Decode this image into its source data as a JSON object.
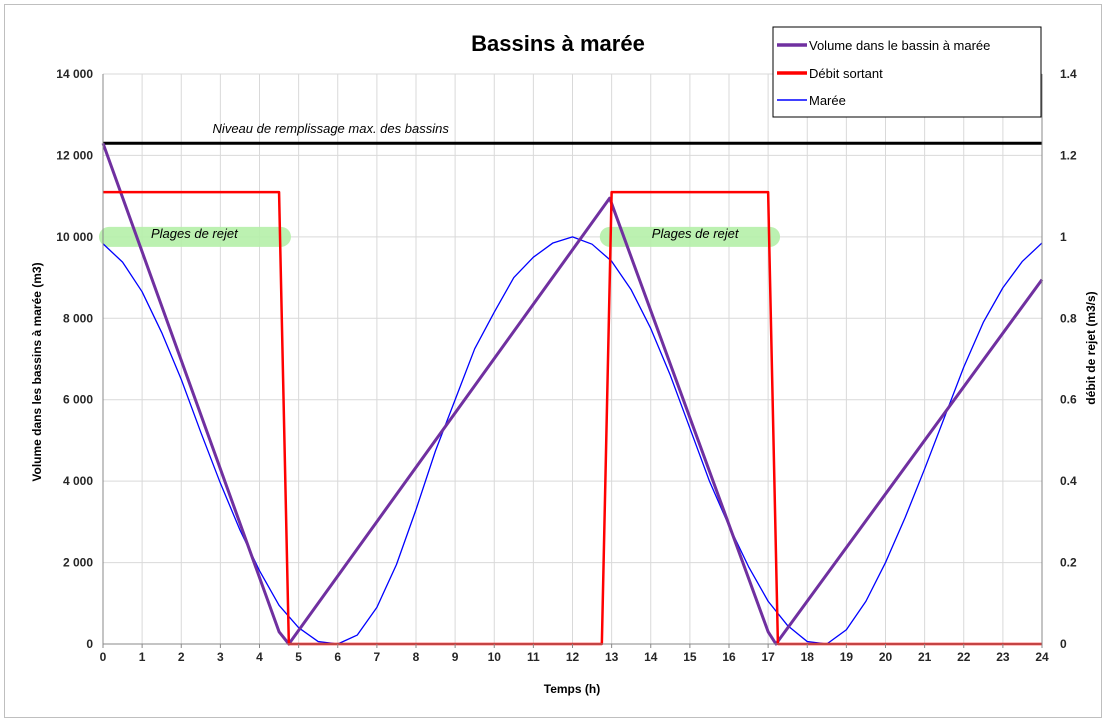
{
  "chart_data": {
    "type": "line",
    "title": "Bassins à marée",
    "xlabel": "Temps (h)",
    "ylabel_left": "Volume dans les bassins à marée (m3)",
    "ylabel_right": "débit de rejet (m3/s)",
    "xlim": [
      0,
      24
    ],
    "ylim_left": [
      0,
      14000
    ],
    "ylim_right": [
      0,
      1.4
    ],
    "x_ticks": [
      "0",
      "1",
      "2",
      "3",
      "4",
      "5",
      "6",
      "7",
      "8",
      "9",
      "10",
      "11",
      "12",
      "13",
      "14",
      "15",
      "16",
      "17",
      "18",
      "19",
      "20",
      "21",
      "22",
      "23",
      "24"
    ],
    "y_left_ticks": [
      "0",
      "2 000",
      "4 000",
      "6 000",
      "8 000",
      "10 000",
      "12 000",
      "14 000"
    ],
    "y_right_ticks": [
      "0",
      "0.2",
      "0.4",
      "0.6",
      "0.8",
      "1",
      "1.2",
      "1.4"
    ],
    "grid": true,
    "legend_position": "top-right",
    "max_level": {
      "label": "Niveau de remplissage max. des bassins",
      "value": 12300,
      "color": "#000000"
    },
    "discharge_windows": [
      {
        "label": "Plages de rejet",
        "start": 0,
        "end": 4.6,
        "level": 10000
      },
      {
        "label": "Plages de rejet",
        "start": 12.8,
        "end": 17.1,
        "level": 10000
      }
    ],
    "series": [
      {
        "name": "Volume dans le bassin à marée",
        "axis": "left",
        "color": "#7030a0",
        "points": [
          [
            0,
            12300
          ],
          [
            4.5,
            300
          ],
          [
            4.75,
            0
          ],
          [
            12.95,
            10950
          ],
          [
            17,
            300
          ],
          [
            17.2,
            0
          ],
          [
            24,
            8950
          ]
        ]
      },
      {
        "name": "Débit sortant",
        "axis": "right",
        "color": "#ff0000",
        "points": [
          [
            0,
            1.11
          ],
          [
            4.5,
            1.11
          ],
          [
            4.75,
            0
          ],
          [
            12.75,
            0
          ],
          [
            13,
            1.11
          ],
          [
            17,
            1.11
          ],
          [
            17.25,
            0
          ],
          [
            24,
            0
          ]
        ]
      },
      {
        "name": "Marée",
        "axis": "left",
        "color": "#0000ff",
        "points": [
          [
            0,
            9830
          ],
          [
            0.5,
            9380
          ],
          [
            1,
            8650
          ],
          [
            1.5,
            7650
          ],
          [
            2,
            6500
          ],
          [
            2.5,
            5200
          ],
          [
            3,
            3950
          ],
          [
            3.5,
            2800
          ],
          [
            4,
            1800
          ],
          [
            4.5,
            950
          ],
          [
            5,
            400
          ],
          [
            5.5,
            60
          ],
          [
            6,
            0
          ],
          [
            6.5,
            220
          ],
          [
            7,
            900
          ],
          [
            7.5,
            1950
          ],
          [
            8,
            3300
          ],
          [
            8.5,
            4750
          ],
          [
            9,
            6000
          ],
          [
            9.5,
            7250
          ],
          [
            10,
            8150
          ],
          [
            10.5,
            9000
          ],
          [
            11,
            9500
          ],
          [
            11.5,
            9850
          ],
          [
            12,
            10000
          ],
          [
            12.5,
            9820
          ],
          [
            13,
            9400
          ],
          [
            13.5,
            8700
          ],
          [
            14,
            7750
          ],
          [
            14.5,
            6600
          ],
          [
            15,
            5300
          ],
          [
            15.5,
            4000
          ],
          [
            16,
            2900
          ],
          [
            16.5,
            1900
          ],
          [
            17,
            1050
          ],
          [
            17.5,
            450
          ],
          [
            18,
            60
          ],
          [
            18.5,
            0
          ],
          [
            19,
            350
          ],
          [
            19.5,
            1050
          ],
          [
            20,
            2000
          ],
          [
            20.5,
            3100
          ],
          [
            21,
            4300
          ],
          [
            21.5,
            5550
          ],
          [
            22,
            6800
          ],
          [
            22.5,
            7900
          ],
          [
            23,
            8750
          ],
          [
            23.5,
            9400
          ],
          [
            24,
            9850
          ]
        ]
      }
    ]
  }
}
